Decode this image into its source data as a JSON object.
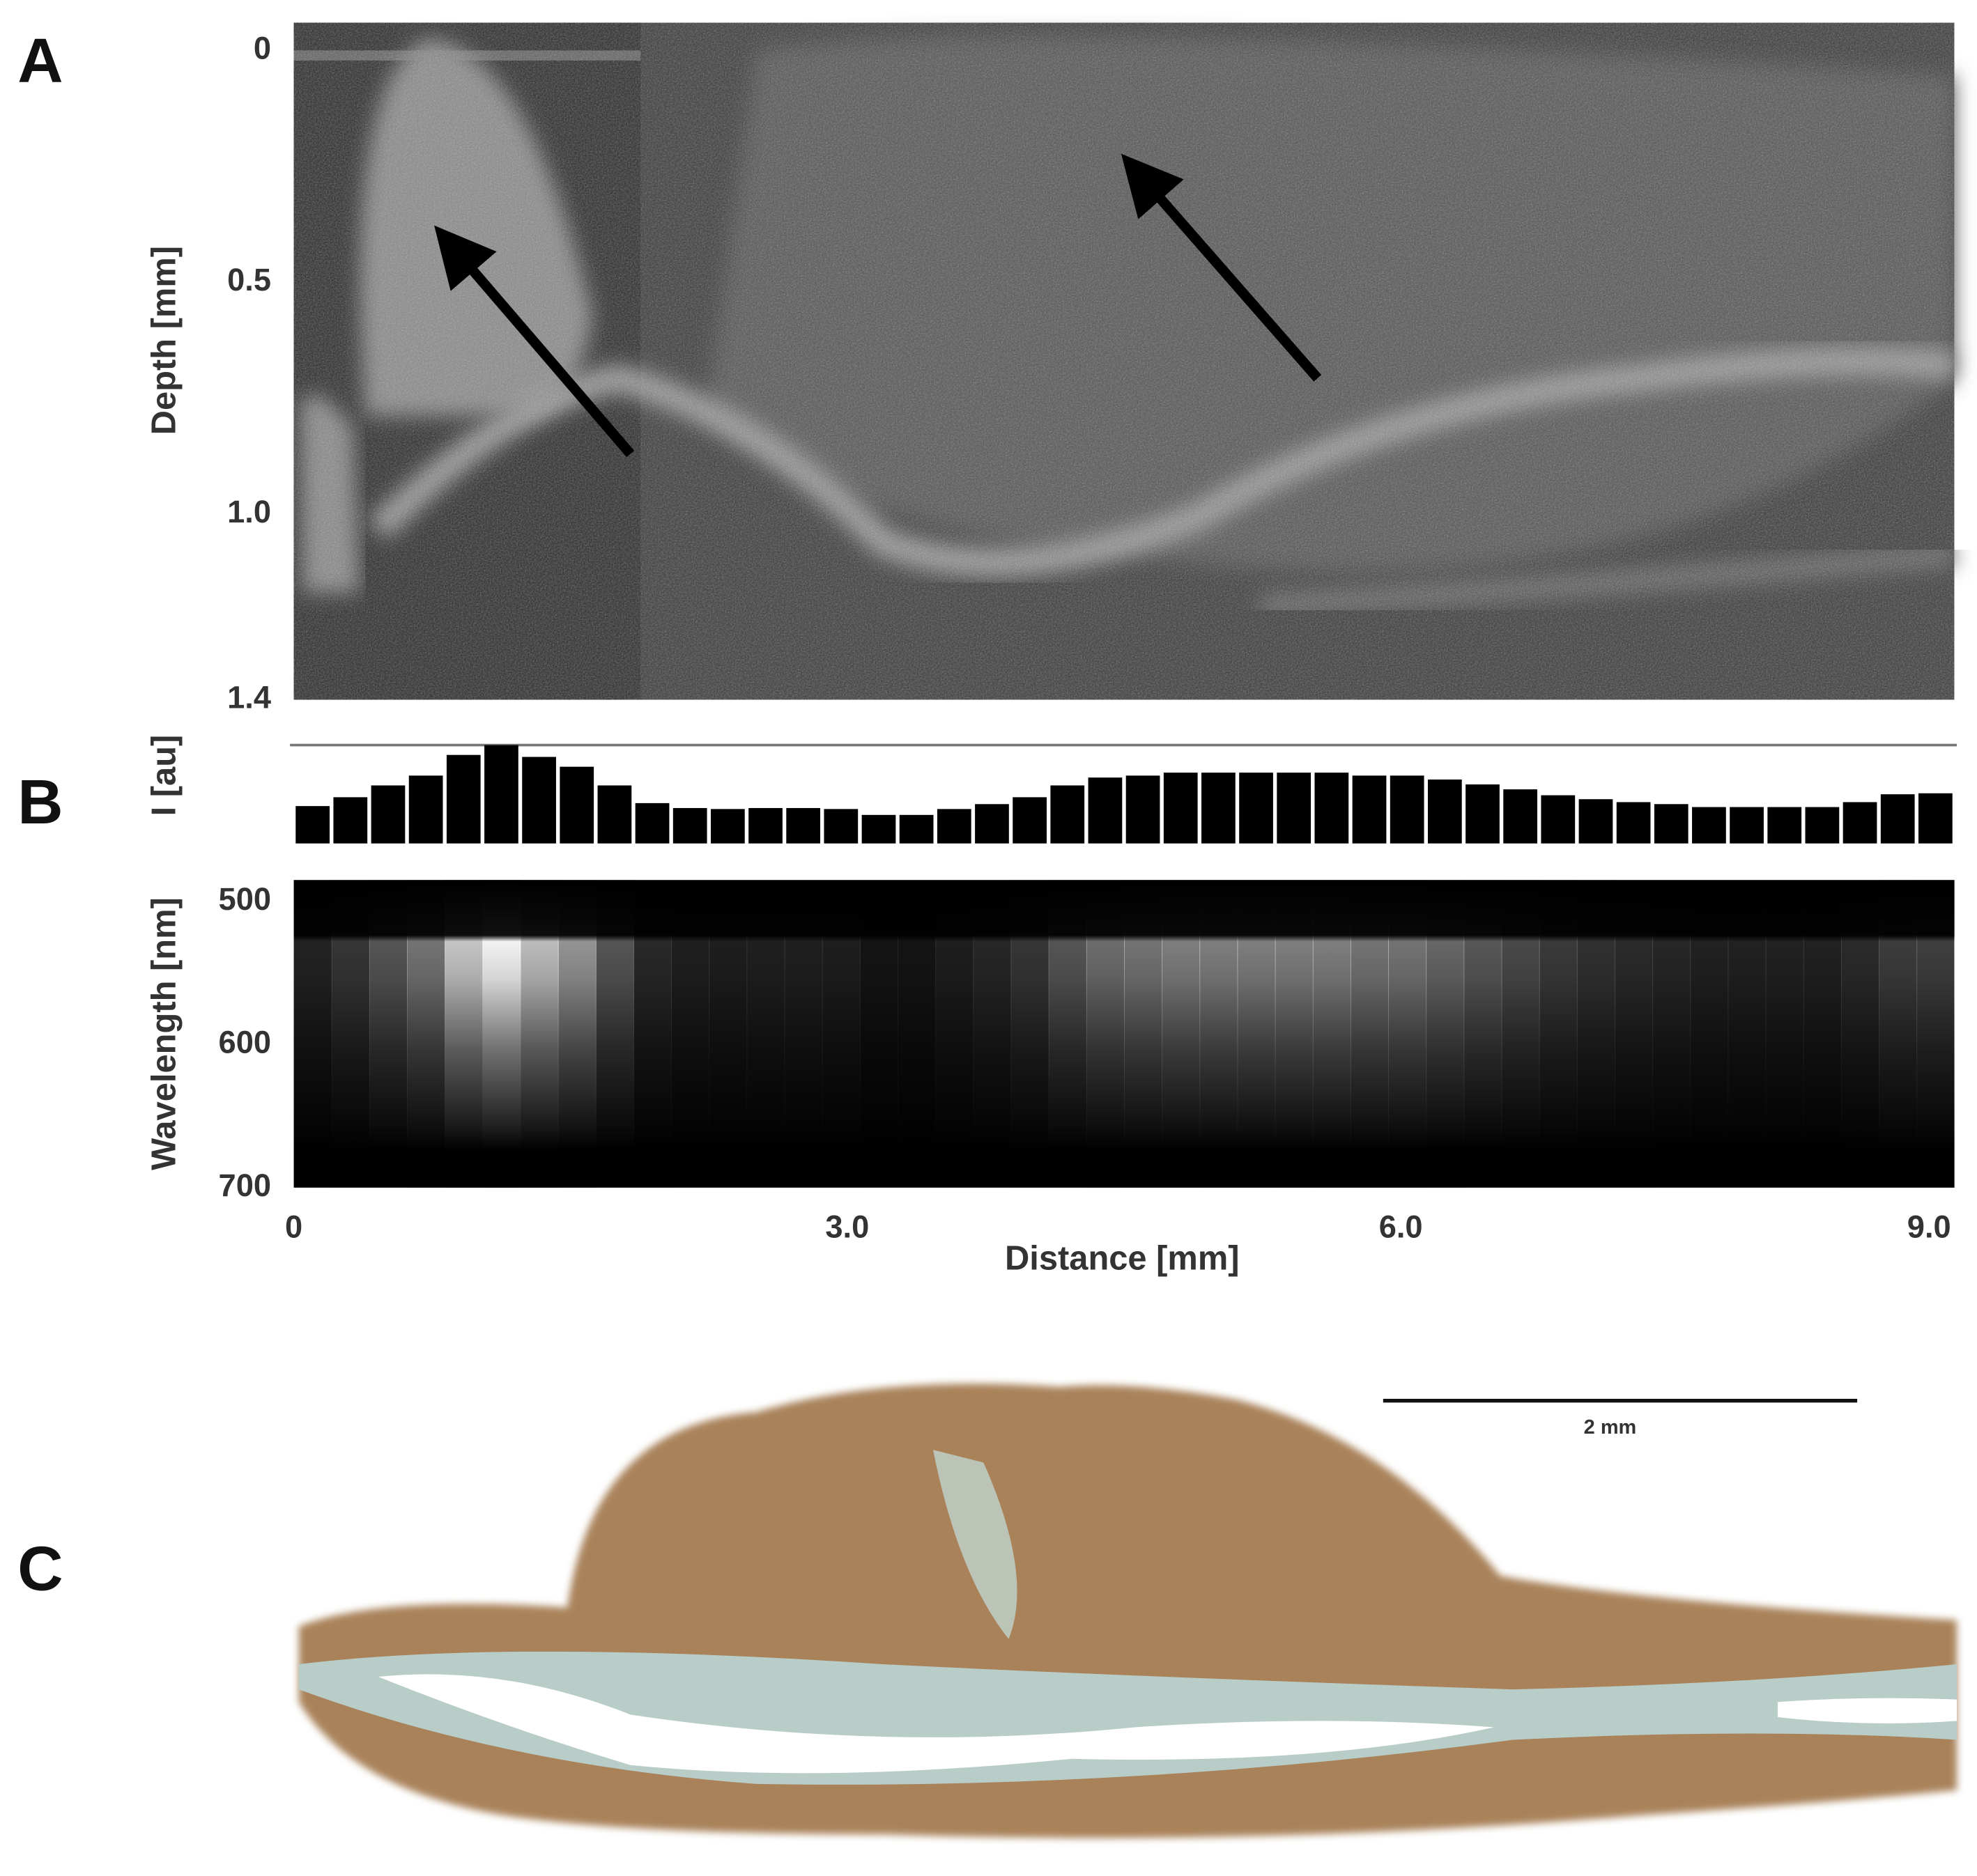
{
  "panel_labels": [
    "A",
    "B",
    "C"
  ],
  "chart_data": [
    {
      "type": "image",
      "ylabel": "Depth [mm]",
      "ylim": [
        0,
        1.4
      ],
      "yticks": [
        0,
        0.5,
        {
          "value": 1,
          "label": "1.0"
        },
        1.4
      ]
    },
    {
      "type": "bar",
      "ylabel": "I [au]",
      "color": "#000000",
      "ylim": [
        0,
        1
      ],
      "categories": [
        null,
        null,
        null,
        null,
        null,
        null,
        null,
        null,
        null,
        null,
        null,
        null,
        null,
        null,
        null,
        null,
        null,
        null,
        null,
        null,
        null,
        null,
        null,
        null,
        null,
        null,
        null,
        null,
        null,
        null,
        null,
        null,
        null,
        null,
        null,
        null,
        null,
        null,
        null,
        null,
        null,
        null,
        null,
        null
      ],
      "values": [
        0.38,
        0.47,
        0.59,
        0.69,
        0.9,
        1.0,
        0.88,
        0.78,
        0.59,
        0.41,
        0.36,
        0.35,
        0.36,
        0.36,
        0.35,
        0.29,
        0.29,
        0.35,
        0.4,
        0.47,
        0.59,
        0.67,
        0.69,
        0.72,
        0.72,
        0.72,
        0.72,
        0.72,
        0.69,
        0.69,
        0.65,
        0.6,
        0.55,
        0.49,
        0.45,
        0.42,
        0.4,
        0.37,
        0.37,
        0.37,
        0.37,
        0.42,
        0.5,
        0.51
      ]
    },
    {
      "type": "heatmap",
      "ylabel": "Wavelength [nm]",
      "xlabel": "Distance [mm]",
      "ylim": [
        485,
        700
      ],
      "yticks": [
        500,
        600,
        700
      ],
      "xlim": [
        0,
        9
      ],
      "xticks": [
        0,
        {
          "value": 3,
          "label": "3.0"
        },
        {
          "value": 6,
          "label": "6.0"
        },
        {
          "value": 9,
          "label": "9.0"
        }
      ]
    }
  ],
  "histology": {
    "scale_bar_label": "2 mm"
  }
}
